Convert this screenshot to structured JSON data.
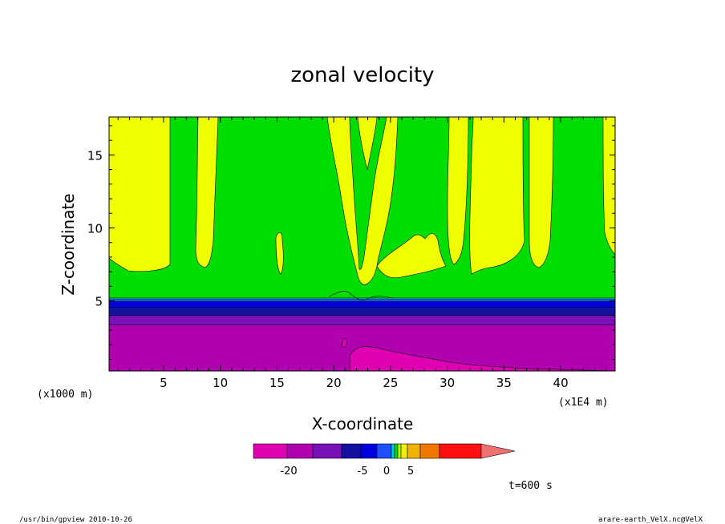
{
  "chart_data": {
    "type": "heatmap",
    "title": "zonal velocity",
    "xlabel": "X-coordinate",
    "ylabel": "Z-coordinate",
    "x_unit_left": "(x1000 m)",
    "x_unit_right": "(x1E4 m)",
    "xlim": [
      0.2,
      44.8
    ],
    "ylim": [
      0.2,
      17.6
    ],
    "x_ticks": [
      5,
      10,
      15,
      20,
      25,
      30,
      35,
      40
    ],
    "y_ticks": [
      5,
      10,
      15
    ],
    "x_tick_labels": [
      "5",
      "10",
      "15",
      "20",
      "25",
      "30",
      "35",
      "40"
    ],
    "y_tick_labels": [
      "5",
      "10",
      "15"
    ],
    "layers": [
      {
        "name": "lowest",
        "z_bottom": 0.2,
        "z_top": 3.35,
        "color": "#b000b0"
      },
      {
        "name": "purple-band",
        "z_bottom": 3.35,
        "z_top": 4.0,
        "color": "#7a10b8"
      },
      {
        "name": "navy-band",
        "z_bottom": 4.0,
        "z_top": 4.55,
        "color": "#1410a0"
      },
      {
        "name": "dark-blue-band",
        "z_bottom": 4.55,
        "z_top": 4.95,
        "color": "#0000dc"
      },
      {
        "name": "blue-band",
        "z_bottom": 4.95,
        "z_top": 5.1,
        "color": "#1e50ff"
      },
      {
        "name": "cyan-band",
        "z_bottom": 5.1,
        "z_top": 5.2,
        "color": "#00c8e6"
      },
      {
        "name": "green-region",
        "z_bottom": 5.2,
        "z_top": 17.6,
        "color": "#00dd00"
      }
    ],
    "colorbar": {
      "colors": [
        "#e000b4",
        "#b000b0",
        "#7a10b8",
        "#1410a0",
        "#0000dc",
        "#1e50ff",
        "#00c8e6",
        "#00dd00",
        "#b4ff00",
        "#f0f000",
        "#f0b400",
        "#f07800",
        "#ff1010"
      ],
      "over_color": "#f07070",
      "tick_labels": [
        "-20",
        "-5",
        "0",
        "5"
      ]
    },
    "colors": {
      "positive_yellow": "#f0ff00",
      "positive_pink": "#f000b8"
    }
  },
  "annotation": "t=600 s",
  "footer": {
    "left": "/usr/bin/gpview  2010-10-26",
    "right": "arare-earth_VelX.nc@VelX"
  }
}
